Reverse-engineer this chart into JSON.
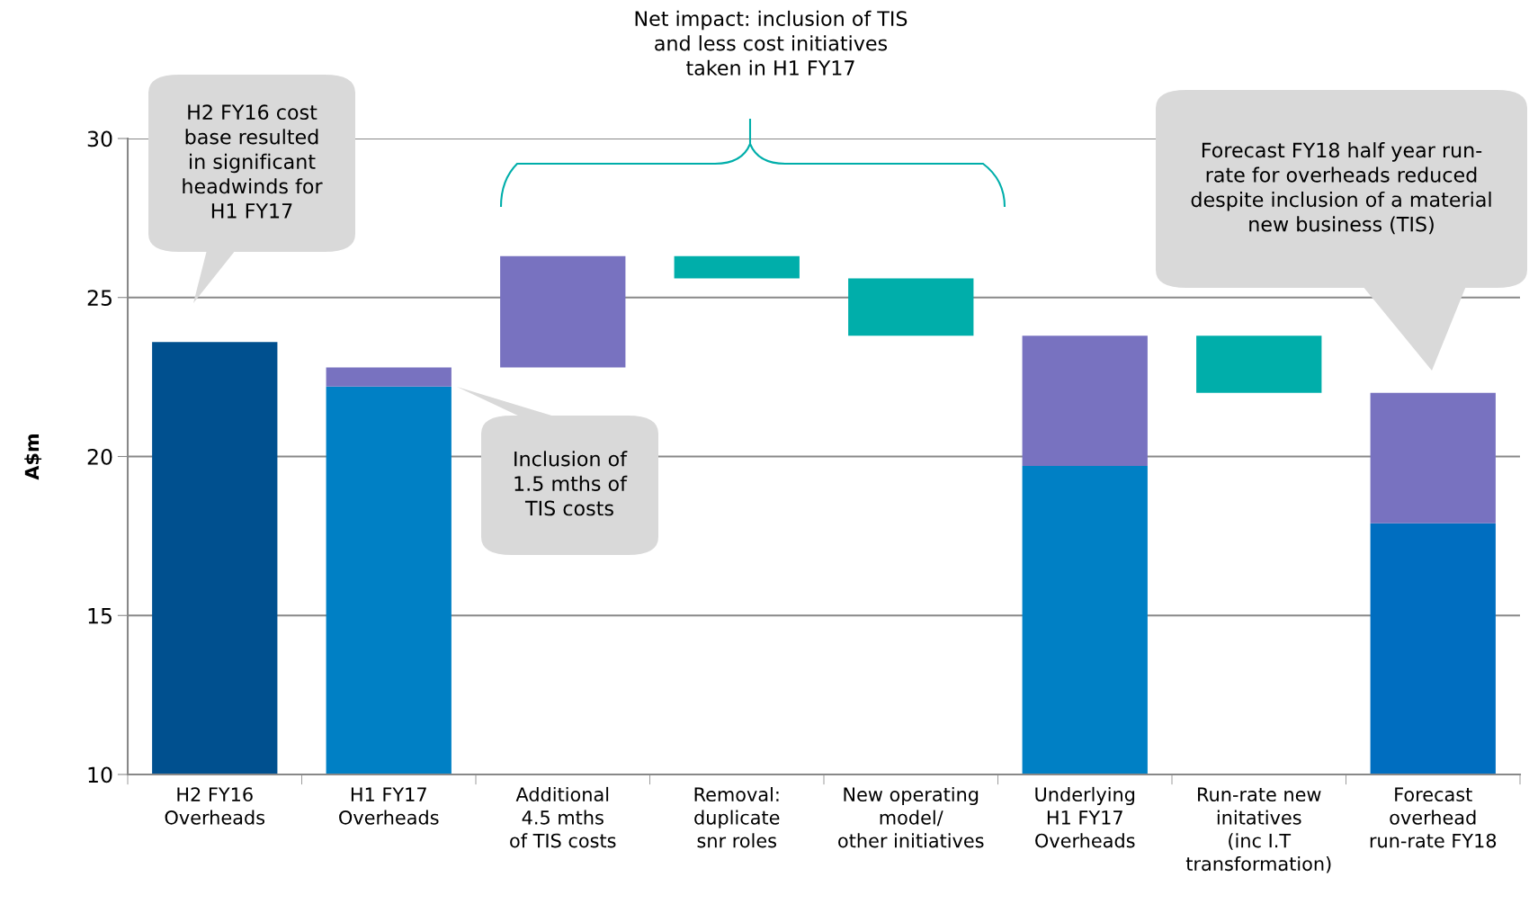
{
  "chart_data": {
    "type": "bar",
    "ylabel": "A$m",
    "categories": [
      "H2 FY16\nOverheads",
      "H1 FY17\nOverheads",
      "Additional\n4.5 mths\nof TIS costs",
      "Removal:\nduplicate\nsnr roles",
      "New operating\nmodel/\nother initiatives",
      "Underlying\nH1 FY17\nOverheads",
      "Run-rate new\ninitatives\n(inc I.T\ntransformation)",
      "Forecast\noverhead\nrun-rate FY18"
    ],
    "series": [
      {
        "colors": [
          "#00508f",
          "#0080c5",
          null,
          null,
          null,
          "#0080c5",
          null,
          "#006ec0"
        ],
        "base": [
          10,
          10,
          null,
          null,
          null,
          10,
          null,
          10
        ],
        "values": [
          13.6,
          12.2,
          null,
          null,
          null,
          9.7,
          null,
          7.9
        ]
      },
      {
        "color": "#7872c0",
        "base": [
          null,
          22.2,
          22.8,
          null,
          null,
          19.7,
          null,
          17.9
        ],
        "values": [
          null,
          0.6,
          3.5,
          null,
          null,
          4.1,
          null,
          4.1
        ]
      },
      {
        "color": "#00aeaa",
        "base": [
          null,
          null,
          null,
          25.6,
          23.8,
          null,
          22.0,
          null
        ],
        "values": [
          null,
          null,
          null,
          0.7,
          1.8,
          null,
          1.8,
          null
        ]
      }
    ],
    "ylim": [
      10,
      30
    ],
    "yticks": [
      10,
      15,
      20,
      25,
      30
    ],
    "grid": "y",
    "annotations": [
      "Net impact: inclusion of TIS\nand less cost initiatives\ntaken in H1 FY17",
      "H2 FY16 cost\nbase resulted\nin significant\nheadwinds for\nH1 FY17",
      "Inclusion of\n1.5 mths of\nTIS costs",
      "Forecast FY18 half year run-\nrate for overheads reduced\ndespite inclusion of a material\nnew business (TIS)"
    ]
  }
}
